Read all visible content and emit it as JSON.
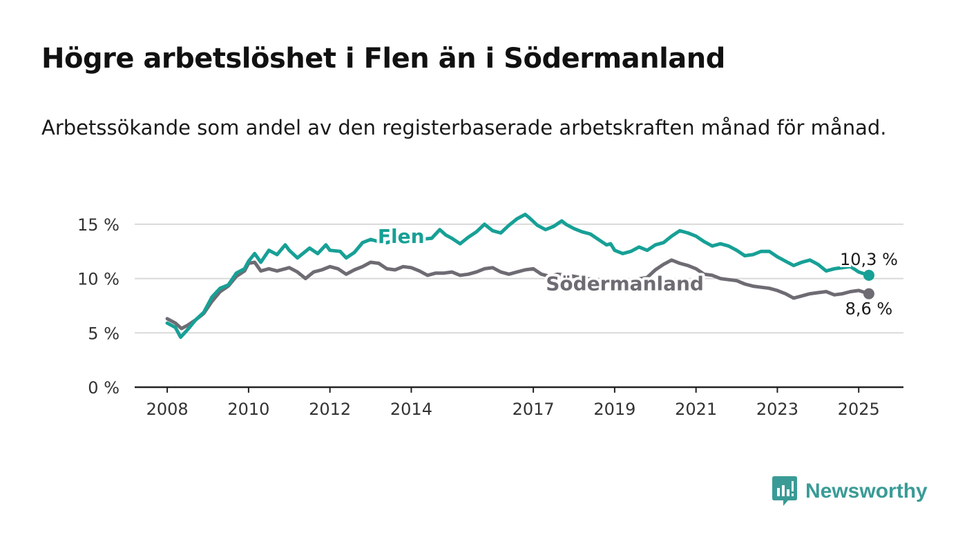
{
  "title": "Högre arbetslöshet i Flen än i Södermanland",
  "subtitle": "Arbetssökande som andel av den registerbaserade arbetskraften månad för månad.",
  "brand": "Newsworthy",
  "colors": {
    "flen": "#17a096",
    "region": "#6e6b73",
    "grid": "#d9d9d9",
    "axis": "#222222"
  },
  "chart_data": {
    "type": "line",
    "x_unit": "year",
    "x_ticks": [
      2008,
      2010,
      2012,
      2014,
      2017,
      2019,
      2021,
      2023,
      2025
    ],
    "x_tick_labels": [
      "2008",
      "2010",
      "2012",
      "2014",
      "2017",
      "2019",
      "2021",
      "2023",
      "2025"
    ],
    "xlim": [
      2007.2,
      2026.1
    ],
    "y_ticks": [
      0,
      5,
      10,
      15
    ],
    "y_tick_labels": [
      "0 %",
      "5 %",
      "10 %",
      "15 %"
    ],
    "ylim": [
      0,
      15.5
    ],
    "grid": true,
    "series": [
      {
        "name": "Flen",
        "end_label": "10,3 %",
        "x": [
          2008.0,
          2008.2,
          2008.33,
          2008.5,
          2008.7,
          2008.9,
          2009.1,
          2009.3,
          2009.5,
          2009.7,
          2009.9,
          2010.0,
          2010.15,
          2010.3,
          2010.5,
          2010.7,
          2010.9,
          2011.0,
          2011.2,
          2011.5,
          2011.7,
          2011.9,
          2012.0,
          2012.25,
          2012.4,
          2012.6,
          2012.8,
          2013.0,
          2013.2,
          2013.4,
          2013.6,
          2013.8,
          2014.0,
          2014.2,
          2014.5,
          2014.7,
          2014.85,
          2015.0,
          2015.2,
          2015.4,
          2015.6,
          2015.8,
          2016.0,
          2016.2,
          2016.4,
          2016.6,
          2016.8,
          2016.9,
          2017.1,
          2017.3,
          2017.5,
          2017.7,
          2017.8,
          2018.0,
          2018.2,
          2018.4,
          2018.6,
          2018.8,
          2018.9,
          2019.0,
          2019.2,
          2019.4,
          2019.6,
          2019.8,
          2020.0,
          2020.2,
          2020.4,
          2020.6,
          2020.8,
          2021.0,
          2021.2,
          2021.4,
          2021.6,
          2021.8,
          2022.0,
          2022.2,
          2022.4,
          2022.6,
          2022.8,
          2023.0,
          2023.2,
          2023.4,
          2023.6,
          2023.8,
          2024.0,
          2024.2,
          2024.4,
          2024.6,
          2024.8,
          2025.0,
          2025.25
        ],
        "values": [
          5.9,
          5.5,
          4.6,
          5.3,
          6.2,
          6.9,
          8.3,
          9.1,
          9.4,
          10.5,
          10.9,
          11.6,
          12.3,
          11.5,
          12.6,
          12.2,
          13.1,
          12.6,
          11.9,
          12.8,
          12.3,
          13.1,
          12.6,
          12.5,
          11.9,
          12.4,
          13.3,
          13.6,
          13.4,
          13.3,
          13.5,
          13.6,
          13.8,
          13.6,
          13.7,
          14.5,
          14.0,
          13.7,
          13.2,
          13.8,
          14.3,
          15.0,
          14.4,
          14.2,
          14.9,
          15.5,
          15.9,
          15.6,
          14.9,
          14.5,
          14.8,
          15.3,
          15.0,
          14.6,
          14.3,
          14.1,
          13.6,
          13.1,
          13.2,
          12.6,
          12.3,
          12.5,
          12.9,
          12.6,
          13.1,
          13.3,
          13.9,
          14.4,
          14.2,
          13.9,
          13.4,
          13.0,
          13.2,
          13.0,
          12.6,
          12.1,
          12.2,
          12.5,
          12.5,
          12.0,
          11.6,
          11.2,
          11.5,
          11.7,
          11.3,
          10.7,
          10.9,
          11.0,
          11.1,
          10.6,
          10.3
        ]
      },
      {
        "name": "Södermanland",
        "end_label": "8,6 %",
        "x": [
          2008.0,
          2008.2,
          2008.35,
          2008.5,
          2008.7,
          2008.9,
          2009.1,
          2009.3,
          2009.5,
          2009.7,
          2009.9,
          2010.0,
          2010.15,
          2010.3,
          2010.5,
          2010.7,
          2010.9,
          2011.0,
          2011.2,
          2011.4,
          2011.6,
          2011.8,
          2012.0,
          2012.2,
          2012.4,
          2012.6,
          2012.8,
          2013.0,
          2013.2,
          2013.4,
          2013.6,
          2013.8,
          2014.0,
          2014.2,
          2014.4,
          2014.6,
          2014.8,
          2015.0,
          2015.2,
          2015.4,
          2015.6,
          2015.8,
          2016.0,
          2016.2,
          2016.4,
          2016.6,
          2016.8,
          2017.0,
          2017.2,
          2017.4,
          2017.6,
          2017.8,
          2018.0,
          2018.3,
          2018.6,
          2018.9,
          2019.2,
          2019.5,
          2019.8,
          2020.0,
          2020.2,
          2020.4,
          2020.6,
          2020.8,
          2021.0,
          2021.2,
          2021.4,
          2021.6,
          2021.8,
          2022.0,
          2022.2,
          2022.4,
          2022.6,
          2022.8,
          2023.0,
          2023.2,
          2023.4,
          2023.6,
          2023.8,
          2024.0,
          2024.2,
          2024.4,
          2024.6,
          2024.8,
          2025.0,
          2025.25
        ],
        "values": [
          6.3,
          5.9,
          5.4,
          5.7,
          6.2,
          6.8,
          7.9,
          8.8,
          9.3,
          10.2,
          10.7,
          11.4,
          11.5,
          10.7,
          10.9,
          10.7,
          10.9,
          11.0,
          10.6,
          10.0,
          10.6,
          10.8,
          11.1,
          10.9,
          10.4,
          10.8,
          11.1,
          11.5,
          11.4,
          10.9,
          10.8,
          11.1,
          11.0,
          10.7,
          10.3,
          10.5,
          10.5,
          10.6,
          10.3,
          10.4,
          10.6,
          10.9,
          11.0,
          10.6,
          10.4,
          10.6,
          10.8,
          10.9,
          10.4,
          10.2,
          10.4,
          10.3,
          10.2,
          10.0,
          9.9,
          9.8,
          9.8,
          9.9,
          10.1,
          10.8,
          11.3,
          11.7,
          11.4,
          11.2,
          10.9,
          10.4,
          10.3,
          10.0,
          9.9,
          9.8,
          9.5,
          9.3,
          9.2,
          9.1,
          8.9,
          8.6,
          8.2,
          8.4,
          8.6,
          8.7,
          8.8,
          8.5,
          8.6,
          8.8,
          8.9,
          8.6
        ]
      }
    ],
    "annotations": [
      {
        "series": "Flen",
        "text": "Flen",
        "at_x": 2013.75,
        "at_y": 13.9
      },
      {
        "series": "Södermanland",
        "text": "Södermanland",
        "at_x": 2019.25,
        "at_y": 9.55
      }
    ]
  }
}
